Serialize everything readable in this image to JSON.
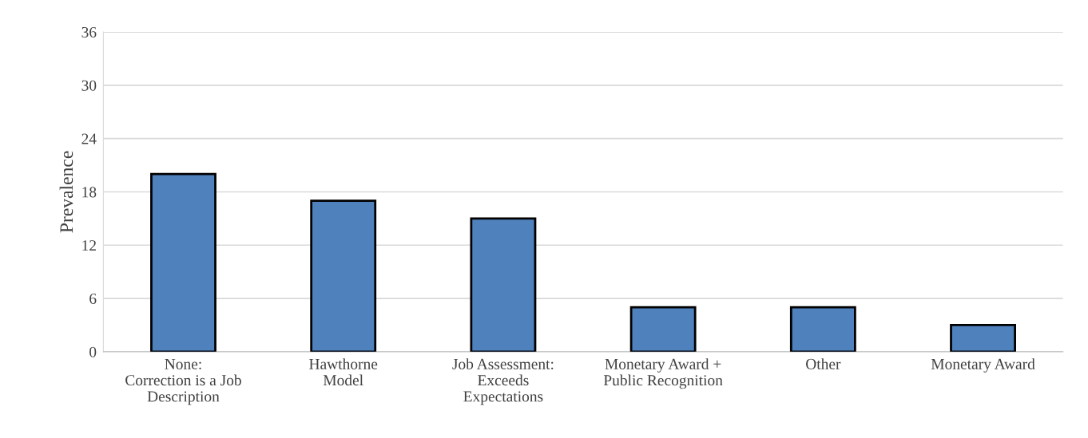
{
  "chart_data": {
    "type": "bar",
    "ylabel": "Prevalence",
    "categories": [
      "None:\nCorrection is a Job\nDescription",
      "Hawthorne\nModel",
      "Job Assessment:\nExceeds\nExpectations",
      "Monetary Award +\nPublic Recognition",
      "Other",
      "Monetary Award"
    ],
    "values": [
      20,
      17,
      15,
      5,
      5,
      3
    ],
    "color": "#4f81bd",
    "ylim": [
      0,
      36
    ],
    "yticks": [
      0,
      6,
      12,
      18,
      24,
      30,
      36
    ],
    "grid": "y",
    "legend": false
  }
}
